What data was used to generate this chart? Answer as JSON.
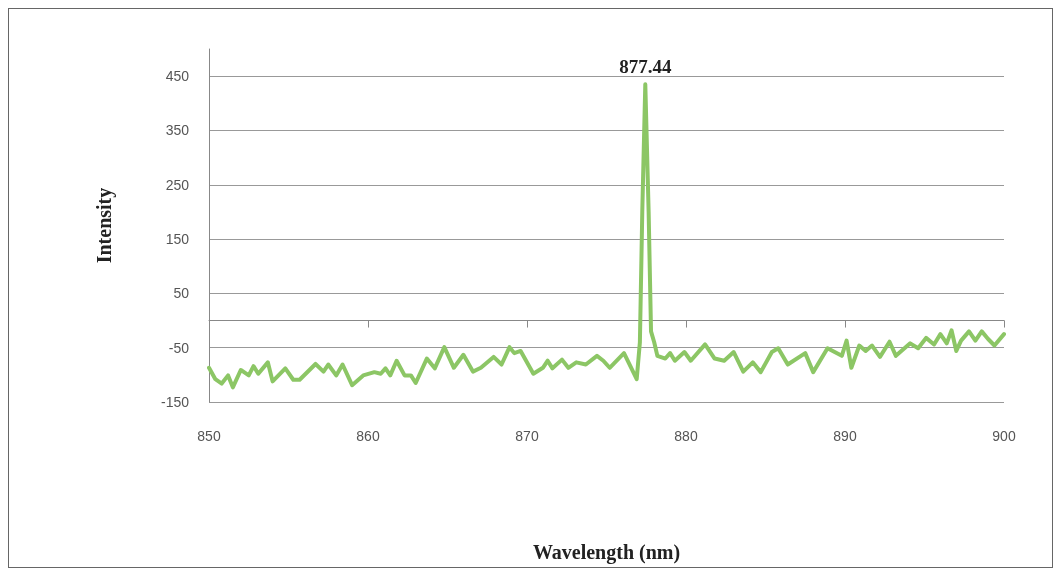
{
  "chart_data": {
    "type": "line",
    "xlabel": "Wavelength (nm)",
    "ylabel": "Intensity",
    "xlim": [
      850,
      900
    ],
    "xticks": [
      850,
      860,
      870,
      880,
      890,
      900
    ],
    "ylim": [
      -150,
      500
    ],
    "yticks": [
      -150,
      -50,
      50,
      150,
      250,
      350,
      450
    ],
    "grid": "y",
    "marker": "none",
    "line_style": "solid",
    "annotations": [
      {
        "text": "877.44",
        "x": 877.44,
        "y": 435
      }
    ],
    "series": [
      {
        "color": "#8cc665",
        "x": [
          850.0,
          850.4,
          850.8,
          851.2,
          851.5,
          852.0,
          852.5,
          852.8,
          853.1,
          853.7,
          854.0,
          854.8,
          855.3,
          855.7,
          856.7,
          857.2,
          857.5,
          858.0,
          858.4,
          859.0,
          859.7,
          860.4,
          860.8,
          861.1,
          861.4,
          861.8,
          862.3,
          862.7,
          863.0,
          863.7,
          864.2,
          864.8,
          865.4,
          866.0,
          866.6,
          867.1,
          867.9,
          868.4,
          868.9,
          869.2,
          869.6,
          870.4,
          871.0,
          871.3,
          871.6,
          872.2,
          872.6,
          873.1,
          873.7,
          874.4,
          874.8,
          875.2,
          876.1,
          876.9,
          877.1,
          877.25,
          877.44,
          877.65,
          877.8,
          878.0,
          878.2,
          878.7,
          879.0,
          879.3,
          879.9,
          880.3,
          881.2,
          881.8,
          882.4,
          883.0,
          883.6,
          884.2,
          884.7,
          885.4,
          885.8,
          886.4,
          887.5,
          888.0,
          888.9,
          889.8,
          890.1,
          890.4,
          890.9,
          891.3,
          891.7,
          892.2,
          892.8,
          893.2,
          894.1,
          894.6,
          895.1,
          895.6,
          896.0,
          896.4,
          896.7,
          897.0,
          897.3,
          897.8,
          898.2,
          898.6,
          899.0,
          899.4,
          900.0
        ],
        "values": [
          -87,
          -108,
          -116,
          -101,
          -123,
          -91,
          -101,
          -84,
          -98,
          -77,
          -112,
          -88,
          -109,
          -109,
          -80,
          -94,
          -81,
          -101,
          -81,
          -119,
          -101,
          -95,
          -98,
          -88,
          -101,
          -74,
          -101,
          -101,
          -115,
          -70,
          -88,
          -49,
          -87,
          -63,
          -94,
          -87,
          -67,
          -81,
          -49,
          -60,
          -56,
          -98,
          -87,
          -74,
          -88,
          -72,
          -87,
          -77,
          -81,
          -65,
          -74,
          -87,
          -60,
          -108,
          -40,
          200,
          435,
          200,
          -20,
          -40,
          -65,
          -70,
          -60,
          -74,
          -58,
          -74,
          -44,
          -70,
          -74,
          -58,
          -94,
          -77,
          -95,
          -58,
          -51,
          -81,
          -60,
          -95,
          -51,
          -65,
          -37,
          -87,
          -46,
          -56,
          -46,
          -67,
          -39,
          -65,
          -42,
          -51,
          -32,
          -44,
          -25,
          -42,
          -18,
          -56,
          -37,
          -20,
          -37,
          -20,
          -34,
          -46,
          -25
        ]
      }
    ]
  }
}
